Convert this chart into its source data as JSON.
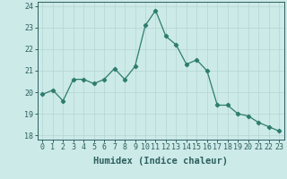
{
  "x": [
    0,
    1,
    2,
    3,
    4,
    5,
    6,
    7,
    8,
    9,
    10,
    11,
    12,
    13,
    14,
    15,
    16,
    17,
    18,
    19,
    20,
    21,
    22,
    23
  ],
  "y": [
    19.9,
    20.1,
    19.6,
    20.6,
    20.6,
    20.4,
    20.6,
    21.1,
    20.6,
    21.2,
    23.1,
    23.8,
    22.6,
    22.2,
    21.3,
    21.5,
    21.0,
    19.4,
    19.4,
    19.0,
    18.9,
    18.6,
    18.4,
    18.2
  ],
  "xlabel": "Humidex (Indice chaleur)",
  "ylim": [
    17.8,
    24.2
  ],
  "xlim": [
    -0.5,
    23.5
  ],
  "yticks": [
    18,
    19,
    20,
    21,
    22,
    23,
    24
  ],
  "xticks": [
    0,
    1,
    2,
    3,
    4,
    5,
    6,
    7,
    8,
    9,
    10,
    11,
    12,
    13,
    14,
    15,
    16,
    17,
    18,
    19,
    20,
    21,
    22,
    23
  ],
  "line_color": "#2d7d6e",
  "bg_color": "#cceae8",
  "grid_color": "#b8d8d5",
  "tick_label_color": "#2d5f5f",
  "label_fontsize": 7.5,
  "tick_fontsize": 6.0
}
